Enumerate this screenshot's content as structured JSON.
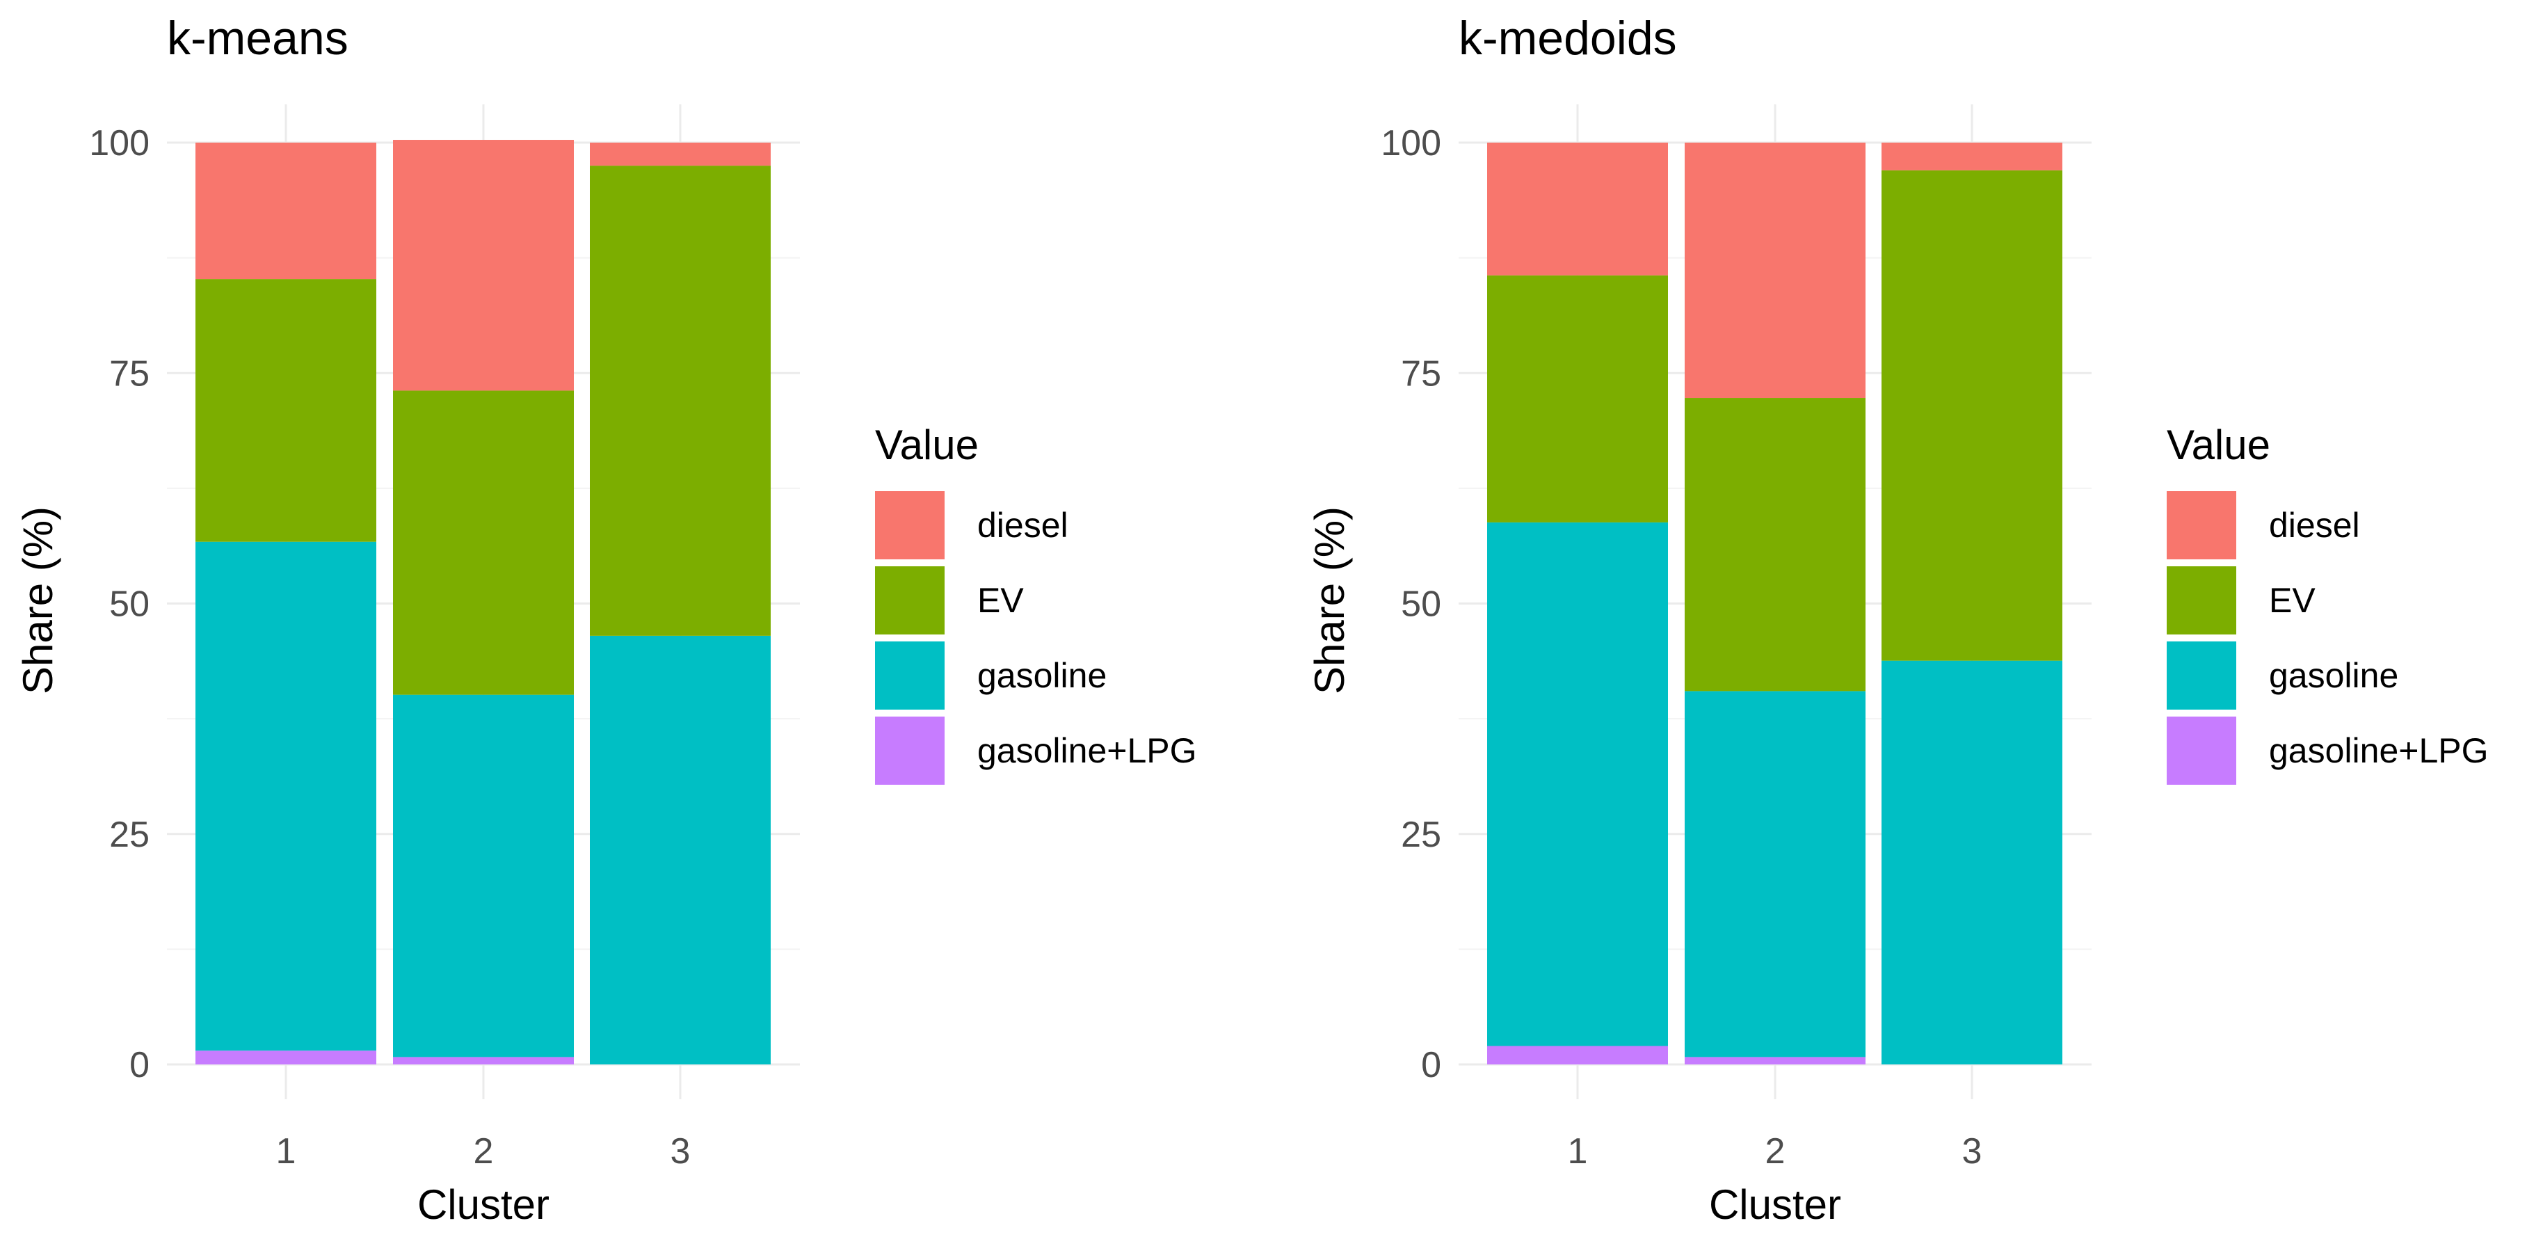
{
  "chart_data": [
    {
      "type": "bar",
      "stacked": true,
      "title": "k-means",
      "xlabel": "Cluster",
      "ylabel": "Share (%)",
      "ylim": [
        0,
        100
      ],
      "yticks": [
        0,
        25,
        50,
        75,
        100
      ],
      "categories": [
        "1",
        "2",
        "3"
      ],
      "legend_title": "Value",
      "series": [
        {
          "name": "gasoline+LPG",
          "color": "#C77CFF",
          "values": [
            1.5,
            0.8,
            0.0
          ]
        },
        {
          "name": "gasoline",
          "color": "#00BFC4",
          "values": [
            55.2,
            39.3,
            46.5
          ]
        },
        {
          "name": "EV",
          "color": "#7CAE00",
          "values": [
            28.5,
            33.0,
            51.0
          ]
        },
        {
          "name": "diesel",
          "color": "#F8766D",
          "values": [
            14.8,
            27.2,
            2.5
          ]
        }
      ]
    },
    {
      "type": "bar",
      "stacked": true,
      "title": "k-medoids",
      "xlabel": "Cluster",
      "ylabel": "Share (%)",
      "ylim": [
        0,
        100
      ],
      "yticks": [
        0,
        25,
        50,
        75,
        100
      ],
      "categories": [
        "1",
        "2",
        "3"
      ],
      "legend_title": "Value",
      "series": [
        {
          "name": "gasoline+LPG",
          "color": "#C77CFF",
          "values": [
            2.0,
            0.8,
            0.0
          ]
        },
        {
          "name": "gasoline",
          "color": "#00BFC4",
          "values": [
            56.8,
            39.7,
            43.8
          ]
        },
        {
          "name": "EV",
          "color": "#7CAE00",
          "values": [
            26.8,
            31.8,
            53.2
          ]
        },
        {
          "name": "diesel",
          "color": "#F8766D",
          "values": [
            14.4,
            27.7,
            3.0
          ]
        }
      ]
    }
  ]
}
